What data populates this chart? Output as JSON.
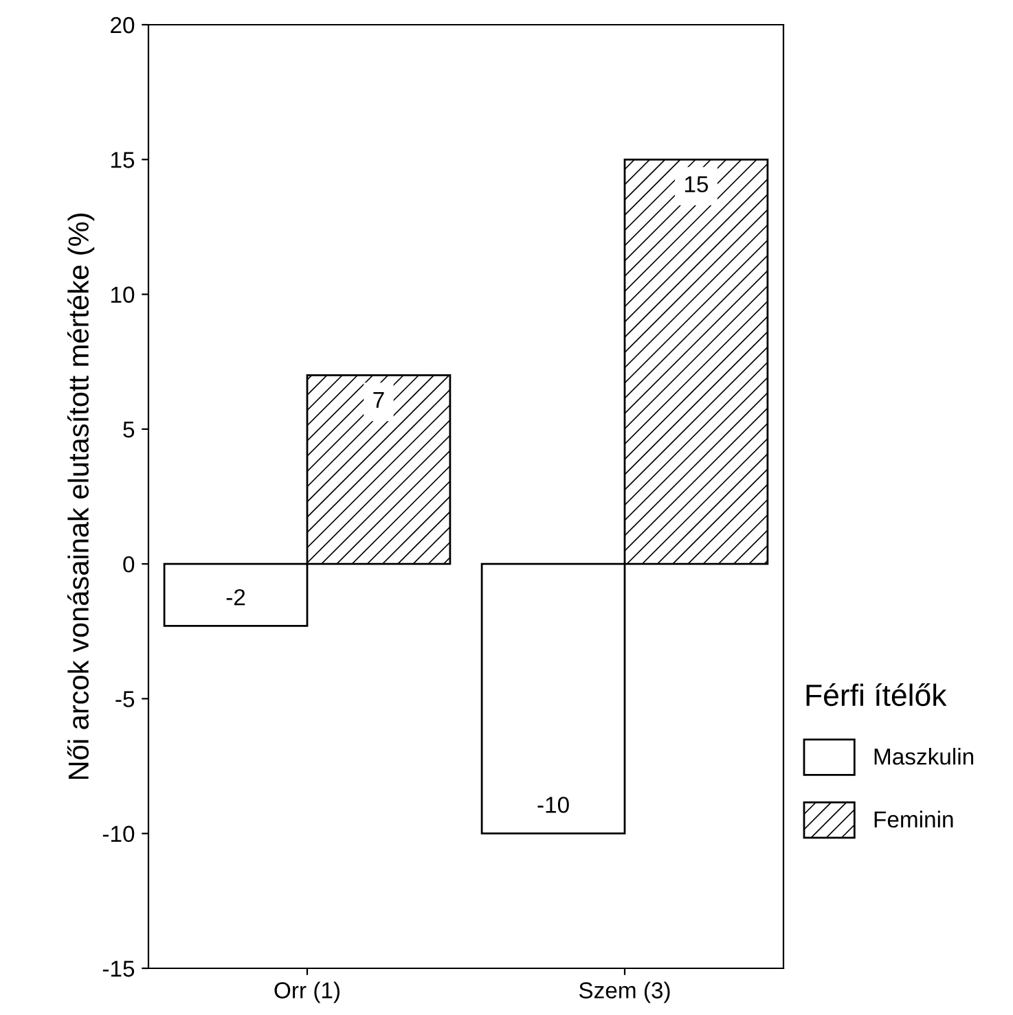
{
  "chart_data": {
    "type": "bar",
    "ylabel": "Női arcok vonásainak elutasított mértéke (%)",
    "legend_title": "Férfi ítélők",
    "categories": [
      "Orr (1)",
      "Szem (3)"
    ],
    "series": [
      {
        "name": "Maszkulin",
        "color": "#ffffff",
        "values": [
          -2.3,
          -10
        ],
        "value_labels": [
          "-2",
          "-10"
        ]
      },
      {
        "name": "Feminin",
        "color": "#000000",
        "values": [
          7,
          15
        ],
        "value_labels": [
          "7",
          "15"
        ]
      }
    ],
    "ylim": [
      -15,
      20
    ],
    "yticks": [
      -15,
      -10,
      -5,
      0,
      5,
      10,
      15,
      20
    ],
    "grid": false,
    "legend": "right"
  }
}
